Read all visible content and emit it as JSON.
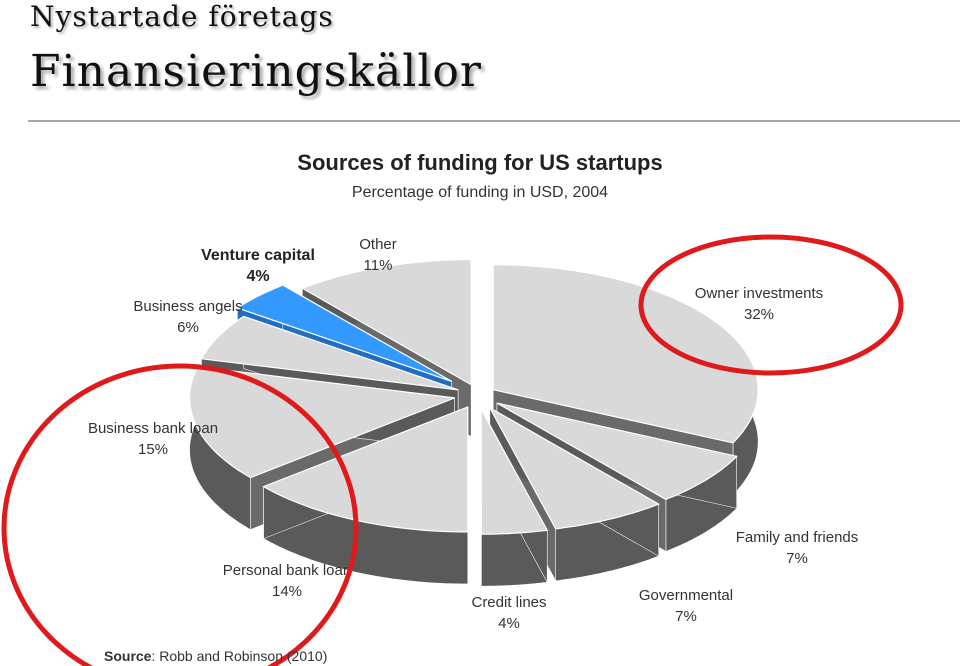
{
  "header": {
    "kicker": "Nystartade företags",
    "title": "Finansieringskällor"
  },
  "chart_data": {
    "type": "pie",
    "title": "Sources of funding for US startups",
    "subtitle": "Percentage of funding in USD, 2004",
    "series": [
      {
        "name": "Owner investments",
        "value": 32,
        "label": "32%"
      },
      {
        "name": "Family and friends",
        "value": 7,
        "label": "7%"
      },
      {
        "name": "Governmental",
        "value": 7,
        "label": "7%"
      },
      {
        "name": "Credit lines",
        "value": 4,
        "label": "4%"
      },
      {
        "name": "Personal bank loan",
        "value": 14,
        "label": "14%"
      },
      {
        "name": "Business bank loan",
        "value": 15,
        "label": "15%"
      },
      {
        "name": "Business angels",
        "value": 6,
        "label": "6%"
      },
      {
        "name": "Venture capital",
        "value": 4,
        "label": "4%"
      },
      {
        "name": "Other",
        "value": 11,
        "label": "11%"
      }
    ],
    "highlighted": [
      "Venture capital"
    ],
    "circled": [
      "Owner investments",
      "Business bank loan",
      "Personal bank loan"
    ],
    "colors": {
      "slice_top": "#d9d9d9",
      "slice_side": "#5a5a5a",
      "highlight": "#3399ff",
      "highlight_side": "#1f6fc4",
      "circle": "#e0191b"
    }
  },
  "source": {
    "prefix": "Source",
    "text": ": Robb and Robinson (2010)"
  }
}
